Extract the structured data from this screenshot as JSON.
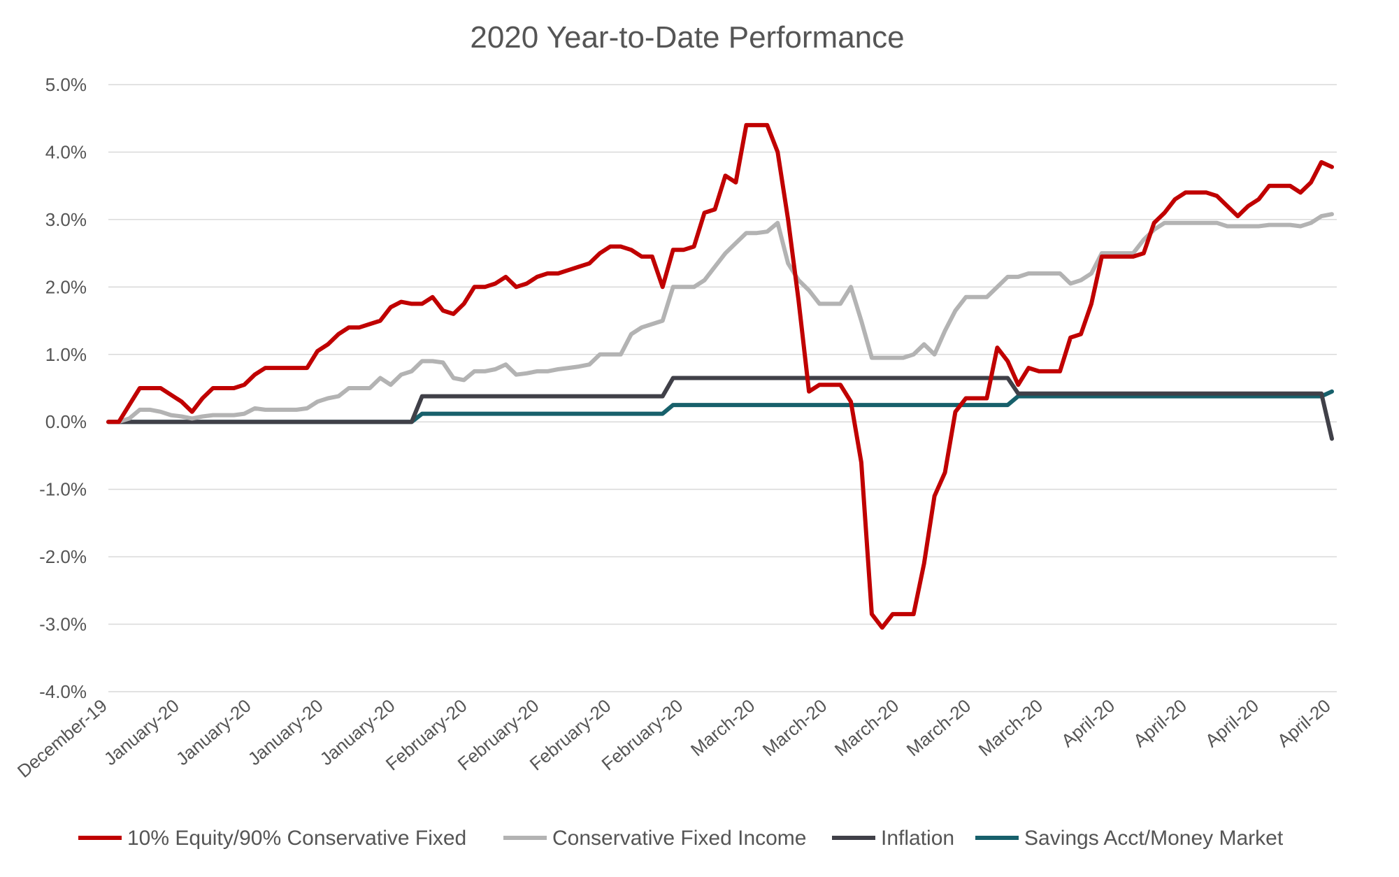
{
  "chart_data": {
    "type": "line",
    "title": "2020 Year-to-Date Performance",
    "ylim": [
      -4.0,
      5.0
    ],
    "y_ticks": [
      5.0,
      4.0,
      3.0,
      2.0,
      1.0,
      0.0,
      -1.0,
      -2.0,
      -3.0,
      -4.0
    ],
    "y_tick_labels": [
      "5.0%",
      "4.0%",
      "3.0%",
      "2.0%",
      "1.0%",
      "0.0%",
      "-1.0%",
      "-2.0%",
      "-3.0%",
      "-4.0%"
    ],
    "x_tick_labels": [
      "December-19",
      "January-20",
      "January-20",
      "January-20",
      "January-20",
      "February-20",
      "February-20",
      "February-20",
      "February-20",
      "March-20",
      "March-20",
      "March-20",
      "March-20",
      "March-20",
      "April-20",
      "April-20",
      "April-20",
      "April-20"
    ],
    "grid": true,
    "legend_position": "bottom",
    "series": [
      {
        "name": "10% Equity/90% Conservative Fixed",
        "color": "#c00000",
        "points": [
          [
            0,
            0.0
          ],
          [
            1,
            0.0
          ],
          [
            2,
            0.25
          ],
          [
            3,
            0.5
          ],
          [
            4,
            0.5
          ],
          [
            5,
            0.5
          ],
          [
            6,
            0.4
          ],
          [
            7,
            0.3
          ],
          [
            8,
            0.15
          ],
          [
            9,
            0.35
          ],
          [
            10,
            0.5
          ],
          [
            11,
            0.5
          ],
          [
            12,
            0.5
          ],
          [
            13,
            0.55
          ],
          [
            14,
            0.7
          ],
          [
            15,
            0.8
          ],
          [
            16,
            0.8
          ],
          [
            17,
            0.8
          ],
          [
            18,
            0.8
          ],
          [
            19,
            0.8
          ],
          [
            20,
            1.05
          ],
          [
            21,
            1.15
          ],
          [
            22,
            1.3
          ],
          [
            23,
            1.4
          ],
          [
            24,
            1.4
          ],
          [
            25,
            1.45
          ],
          [
            26,
            1.5
          ],
          [
            27,
            1.7
          ],
          [
            28,
            1.78
          ],
          [
            29,
            1.75
          ],
          [
            30,
            1.75
          ],
          [
            31,
            1.85
          ],
          [
            32,
            1.65
          ],
          [
            33,
            1.6
          ],
          [
            34,
            1.75
          ],
          [
            35,
            2.0
          ],
          [
            36,
            2.0
          ],
          [
            37,
            2.05
          ],
          [
            38,
            2.15
          ],
          [
            39,
            2.0
          ],
          [
            40,
            2.05
          ],
          [
            41,
            2.15
          ],
          [
            42,
            2.2
          ],
          [
            43,
            2.2
          ],
          [
            44,
            2.25
          ],
          [
            45,
            2.3
          ],
          [
            46,
            2.35
          ],
          [
            47,
            2.5
          ],
          [
            48,
            2.6
          ],
          [
            49,
            2.6
          ],
          [
            50,
            2.55
          ],
          [
            51,
            2.45
          ],
          [
            52,
            2.45
          ],
          [
            53,
            2.0
          ],
          [
            54,
            2.55
          ],
          [
            55,
            2.55
          ],
          [
            56,
            2.6
          ],
          [
            57,
            3.1
          ],
          [
            58,
            3.15
          ],
          [
            59,
            3.65
          ],
          [
            60,
            3.55
          ],
          [
            61,
            4.4
          ],
          [
            62,
            4.4
          ],
          [
            63,
            4.4
          ],
          [
            64,
            4.0
          ],
          [
            65,
            3.0
          ],
          [
            66,
            1.8
          ],
          [
            67,
            0.45
          ],
          [
            68,
            0.55
          ],
          [
            69,
            0.55
          ],
          [
            70,
            0.55
          ],
          [
            71,
            0.3
          ],
          [
            72,
            -0.6
          ],
          [
            73,
            -2.85
          ],
          [
            74,
            -3.05
          ],
          [
            75,
            -2.85
          ],
          [
            76,
            -2.85
          ],
          [
            77,
            -2.85
          ],
          [
            78,
            -2.1
          ],
          [
            79,
            -1.1
          ],
          [
            80,
            -0.75
          ],
          [
            81,
            0.15
          ],
          [
            82,
            0.35
          ],
          [
            83,
            0.35
          ],
          [
            84,
            0.35
          ],
          [
            85,
            1.1
          ],
          [
            86,
            0.9
          ],
          [
            87,
            0.55
          ],
          [
            88,
            0.8
          ],
          [
            89,
            0.75
          ],
          [
            90,
            0.75
          ],
          [
            91,
            0.75
          ],
          [
            92,
            1.25
          ],
          [
            93,
            1.3
          ],
          [
            94,
            1.75
          ],
          [
            95,
            2.45
          ],
          [
            96,
            2.45
          ],
          [
            97,
            2.45
          ],
          [
            98,
            2.45
          ],
          [
            99,
            2.5
          ],
          [
            100,
            2.95
          ],
          [
            101,
            3.1
          ],
          [
            102,
            3.3
          ],
          [
            103,
            3.4
          ],
          [
            104,
            3.4
          ],
          [
            105,
            3.4
          ],
          [
            106,
            3.35
          ],
          [
            107,
            3.2
          ],
          [
            108,
            3.05
          ],
          [
            109,
            3.2
          ],
          [
            110,
            3.3
          ],
          [
            111,
            3.5
          ],
          [
            112,
            3.5
          ],
          [
            113,
            3.5
          ],
          [
            114,
            3.4
          ],
          [
            115,
            3.55
          ],
          [
            116,
            3.85
          ],
          [
            117,
            3.78
          ]
        ]
      },
      {
        "name": "Conservative Fixed Income",
        "color": "#b3b3b3",
        "points": [
          [
            0,
            0.0
          ],
          [
            1,
            0.0
          ],
          [
            2,
            0.05
          ],
          [
            3,
            0.18
          ],
          [
            4,
            0.18
          ],
          [
            5,
            0.15
          ],
          [
            6,
            0.1
          ],
          [
            7,
            0.08
          ],
          [
            8,
            0.05
          ],
          [
            9,
            0.08
          ],
          [
            10,
            0.1
          ],
          [
            11,
            0.1
          ],
          [
            12,
            0.1
          ],
          [
            13,
            0.12
          ],
          [
            14,
            0.2
          ],
          [
            15,
            0.18
          ],
          [
            16,
            0.18
          ],
          [
            17,
            0.18
          ],
          [
            18,
            0.18
          ],
          [
            19,
            0.2
          ],
          [
            20,
            0.3
          ],
          [
            21,
            0.35
          ],
          [
            22,
            0.38
          ],
          [
            23,
            0.5
          ],
          [
            24,
            0.5
          ],
          [
            25,
            0.5
          ],
          [
            26,
            0.65
          ],
          [
            27,
            0.55
          ],
          [
            28,
            0.7
          ],
          [
            29,
            0.75
          ],
          [
            30,
            0.9
          ],
          [
            31,
            0.9
          ],
          [
            32,
            0.88
          ],
          [
            33,
            0.65
          ],
          [
            34,
            0.62
          ],
          [
            35,
            0.75
          ],
          [
            36,
            0.75
          ],
          [
            37,
            0.78
          ],
          [
            38,
            0.85
          ],
          [
            39,
            0.7
          ],
          [
            40,
            0.72
          ],
          [
            41,
            0.75
          ],
          [
            42,
            0.75
          ],
          [
            43,
            0.78
          ],
          [
            44,
            0.8
          ],
          [
            45,
            0.82
          ],
          [
            46,
            0.85
          ],
          [
            47,
            1.0
          ],
          [
            48,
            1.0
          ],
          [
            49,
            1.0
          ],
          [
            50,
            1.3
          ],
          [
            51,
            1.4
          ],
          [
            52,
            1.45
          ],
          [
            53,
            1.5
          ],
          [
            54,
            2.0
          ],
          [
            55,
            2.0
          ],
          [
            56,
            2.0
          ],
          [
            57,
            2.1
          ],
          [
            58,
            2.3
          ],
          [
            59,
            2.5
          ],
          [
            60,
            2.65
          ],
          [
            61,
            2.8
          ],
          [
            62,
            2.8
          ],
          [
            63,
            2.82
          ],
          [
            64,
            2.95
          ],
          [
            65,
            2.35
          ],
          [
            66,
            2.1
          ],
          [
            67,
            1.95
          ],
          [
            68,
            1.75
          ],
          [
            69,
            1.75
          ],
          [
            70,
            1.75
          ],
          [
            71,
            2.0
          ],
          [
            72,
            1.5
          ],
          [
            73,
            0.95
          ],
          [
            74,
            0.95
          ],
          [
            75,
            0.95
          ],
          [
            76,
            0.95
          ],
          [
            77,
            1.0
          ],
          [
            78,
            1.15
          ],
          [
            79,
            1.0
          ],
          [
            80,
            1.35
          ],
          [
            81,
            1.65
          ],
          [
            82,
            1.85
          ],
          [
            83,
            1.85
          ],
          [
            84,
            1.85
          ],
          [
            85,
            2.0
          ],
          [
            86,
            2.15
          ],
          [
            87,
            2.15
          ],
          [
            88,
            2.2
          ],
          [
            89,
            2.2
          ],
          [
            90,
            2.2
          ],
          [
            91,
            2.2
          ],
          [
            92,
            2.05
          ],
          [
            93,
            2.1
          ],
          [
            94,
            2.2
          ],
          [
            95,
            2.5
          ],
          [
            96,
            2.5
          ],
          [
            97,
            2.5
          ],
          [
            98,
            2.5
          ],
          [
            99,
            2.7
          ],
          [
            100,
            2.85
          ],
          [
            101,
            2.95
          ],
          [
            102,
            2.95
          ],
          [
            103,
            2.95
          ],
          [
            104,
            2.95
          ],
          [
            105,
            2.95
          ],
          [
            106,
            2.95
          ],
          [
            107,
            2.9
          ],
          [
            108,
            2.9
          ],
          [
            109,
            2.9
          ],
          [
            110,
            2.9
          ],
          [
            111,
            2.92
          ],
          [
            112,
            2.92
          ],
          [
            113,
            2.92
          ],
          [
            114,
            2.9
          ],
          [
            115,
            2.95
          ],
          [
            116,
            3.05
          ],
          [
            117,
            3.08
          ]
        ]
      },
      {
        "name": "Inflation",
        "color": "#404048",
        "points": [
          [
            0,
            0.0
          ],
          [
            29,
            0.0
          ],
          [
            30,
            0.38
          ],
          [
            53,
            0.38
          ],
          [
            54,
            0.65
          ],
          [
            86,
            0.65
          ],
          [
            87,
            0.42
          ],
          [
            116,
            0.42
          ],
          [
            117,
            -0.25
          ]
        ]
      },
      {
        "name": "Savings Acct/Money Market",
        "color": "#17606b",
        "points": [
          [
            0,
            0.0
          ],
          [
            29,
            0.0
          ],
          [
            30,
            0.12
          ],
          [
            53,
            0.12
          ],
          [
            54,
            0.25
          ],
          [
            86,
            0.25
          ],
          [
            87,
            0.38
          ],
          [
            116,
            0.38
          ],
          [
            117,
            0.45
          ]
        ]
      }
    ]
  }
}
